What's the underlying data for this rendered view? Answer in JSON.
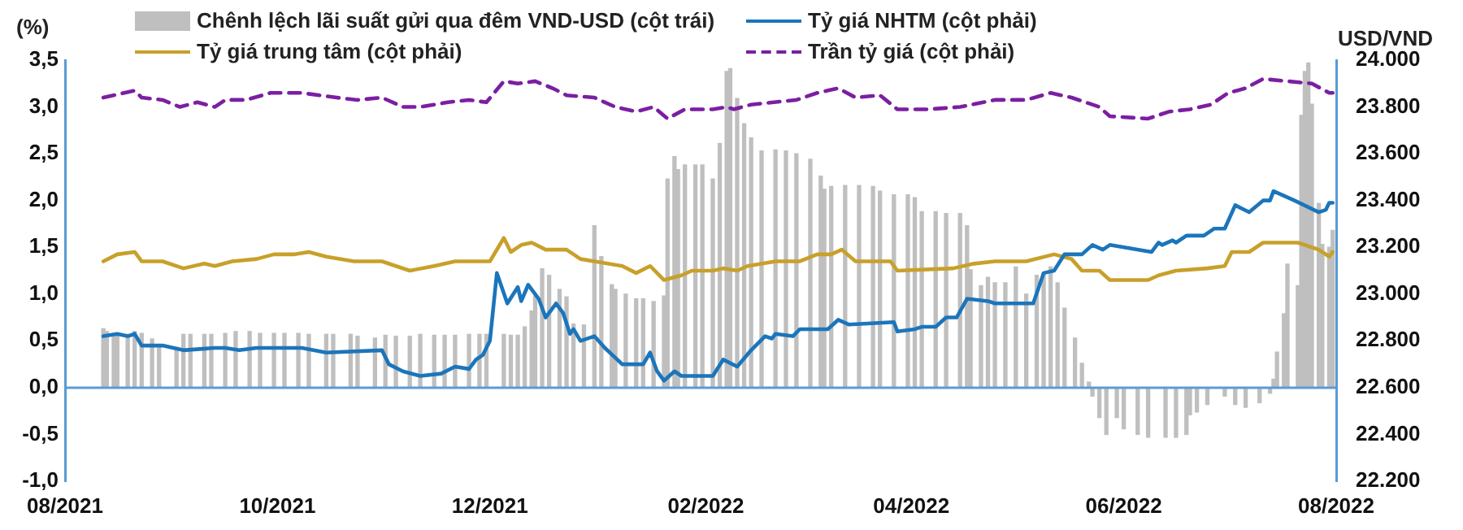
{
  "chart_data": {
    "type": "bar",
    "ylabel": "(%)",
    "y2label": "USD/VND",
    "legend": "top",
    "grid": false,
    "marker": "none",
    "xlim": [
      "2021-08-01",
      "2022-08-01"
    ],
    "xticks": [
      {
        "value": "2021-08-01",
        "label": "08/2021"
      },
      {
        "value": "2021-10-01",
        "label": "10/2021"
      },
      {
        "value": "2021-12-01",
        "label": "12/2021"
      },
      {
        "value": "2022-02-01",
        "label": "02/2022"
      },
      {
        "value": "2022-04-01",
        "label": "04/2022"
      },
      {
        "value": "2022-06-01",
        "label": "06/2022"
      },
      {
        "value": "2022-08-01",
        "label": "08/2022"
      }
    ],
    "ylim": [
      -1,
      3.5
    ],
    "yticks": [
      {
        "value": -1,
        "label": "-1,0"
      },
      {
        "value": -0.5,
        "label": "-0,5"
      },
      {
        "value": 0,
        "label": "0,0"
      },
      {
        "value": 0.5,
        "label": "0,5"
      },
      {
        "value": 1,
        "label": "1,0"
      },
      {
        "value": 1.5,
        "label": "1,5"
      },
      {
        "value": 2,
        "label": "2,0"
      },
      {
        "value": 2.5,
        "label": "2,5"
      },
      {
        "value": 3,
        "label": "3,0"
      },
      {
        "value": 3.5,
        "label": "3,5"
      }
    ],
    "ref_lines": [
      {
        "axis": "y",
        "value": 0,
        "color": "#5b9bd5"
      }
    ],
    "y2lim": [
      22200,
      24000
    ],
    "y2ticks": [
      {
        "value": 22200,
        "label": "22.200"
      },
      {
        "value": 22400,
        "label": "22.400"
      },
      {
        "value": 22600,
        "label": "22.600"
      },
      {
        "value": 22800,
        "label": "22.800"
      },
      {
        "value": 23000,
        "label": "23.000"
      },
      {
        "value": 23200,
        "label": "23.200"
      },
      {
        "value": 23400,
        "label": "23.400"
      },
      {
        "value": 23600,
        "label": "23.600"
      },
      {
        "value": 23800,
        "label": "23.800"
      },
      {
        "value": 24000,
        "label": "24.000"
      }
    ],
    "series": [
      {
        "name": "Chênh lệch lãi suất gửi qua đêm VND-USD (cột trái)",
        "color": "#bfbfbf",
        "x": [
          "2021-08-12",
          "2021-08-13",
          "2021-08-15",
          "2021-08-16",
          "2021-08-19",
          "2021-08-21",
          "2021-08-23",
          "2021-08-26",
          "2021-08-28",
          "2021-09-02",
          "2021-09-04",
          "2021-09-06",
          "2021-09-10",
          "2021-09-12",
          "2021-09-16",
          "2021-09-19",
          "2021-09-23",
          "2021-09-26",
          "2021-09-30",
          "2021-10-03",
          "2021-10-07",
          "2021-10-10",
          "2021-10-15",
          "2021-10-17",
          "2021-10-22",
          "2021-10-24",
          "2021-10-29",
          "2021-11-01",
          "2021-11-04",
          "2021-11-08",
          "2021-11-11",
          "2021-11-15",
          "2021-11-18",
          "2021-11-21",
          "2021-11-25",
          "2021-11-28",
          "2021-11-30",
          "2021-12-05",
          "2021-12-07",
          "2021-12-09",
          "2021-12-11",
          "2021-12-13",
          "2021-12-14",
          "2021-12-16",
          "2021-12-18",
          "2021-12-21",
          "2021-12-23",
          "2021-12-25",
          "2021-12-28",
          "2021-12-31",
          "2022-01-02",
          "2022-01-05",
          "2022-01-06",
          "2022-01-09",
          "2022-01-12",
          "2022-01-14",
          "2022-01-17",
          "2022-01-20",
          "2022-01-21",
          "2022-01-23",
          "2022-01-24",
          "2022-01-26",
          "2022-01-29",
          "2022-01-31",
          "2022-02-03",
          "2022-02-05",
          "2022-02-07",
          "2022-02-08",
          "2022-02-10",
          "2022-02-12",
          "2022-02-14",
          "2022-02-17",
          "2022-02-21",
          "2022-02-24",
          "2022-02-27",
          "2022-03-03",
          "2022-03-06",
          "2022-03-07",
          "2022-03-09",
          "2022-03-13",
          "2022-03-17",
          "2022-03-21",
          "2022-03-23",
          "2022-03-27",
          "2022-03-31",
          "2022-04-02",
          "2022-04-04",
          "2022-04-08",
          "2022-04-11",
          "2022-04-15",
          "2022-04-17",
          "2022-04-18",
          "2022-04-21",
          "2022-04-23",
          "2022-04-25",
          "2022-04-28",
          "2022-05-01",
          "2022-05-04",
          "2022-05-07",
          "2022-05-09",
          "2022-05-11",
          "2022-05-13",
          "2022-05-15",
          "2022-05-18",
          "2022-05-20",
          "2022-05-22",
          "2022-05-23",
          "2022-05-25",
          "2022-05-27",
          "2022-05-30",
          "2022-06-01",
          "2022-06-05",
          "2022-06-08",
          "2022-06-13",
          "2022-06-16",
          "2022-06-19",
          "2022-06-20",
          "2022-06-22",
          "2022-06-25",
          "2022-06-30",
          "2022-07-03",
          "2022-07-06",
          "2022-07-10",
          "2022-07-13",
          "2022-07-14",
          "2022-07-15",
          "2022-07-17",
          "2022-07-18",
          "2022-07-21",
          "2022-07-22",
          "2022-07-23",
          "2022-07-24",
          "2022-07-25",
          "2022-07-27",
          "2022-07-28",
          "2022-07-30",
          "2022-07-31"
        ],
        "values": [
          0.63,
          0.6,
          0.58,
          0.57,
          0.57,
          0.6,
          0.58,
          0.52,
          0.43,
          0.43,
          0.57,
          0.57,
          0.57,
          0.57,
          0.58,
          0.6,
          0.6,
          0.58,
          0.58,
          0.58,
          0.58,
          0.57,
          0.57,
          0.57,
          0.57,
          0.55,
          0.53,
          0.56,
          0.55,
          0.55,
          0.57,
          0.56,
          0.56,
          0.56,
          0.57,
          0.57,
          0.57,
          0.57,
          0.56,
          0.56,
          0.65,
          0.82,
          0.98,
          1.27,
          1.2,
          1.05,
          0.97,
          0.68,
          0.67,
          1.73,
          1.4,
          1.1,
          1.05,
          1.0,
          0.95,
          0.95,
          0.92,
          0.98,
          2.23,
          2.47,
          2.33,
          2.38,
          2.38,
          2.38,
          2.23,
          2.61,
          3.38,
          3.41,
          3.09,
          2.82,
          2.67,
          2.53,
          2.54,
          2.53,
          2.5,
          2.44,
          2.26,
          2.12,
          2.15,
          2.16,
          2.16,
          2.15,
          2.1,
          2.06,
          2.06,
          2.03,
          1.88,
          1.88,
          1.86,
          1.86,
          1.73,
          1.26,
          1.09,
          1.18,
          1.12,
          1.12,
          1.29,
          1.0,
          1.2,
          1.23,
          1.29,
          1.12,
          0.85,
          0.53,
          0.26,
          0.06,
          -0.09,
          -0.32,
          -0.5,
          -0.32,
          -0.44,
          -0.5,
          -0.53,
          -0.53,
          -0.53,
          -0.5,
          -0.29,
          -0.26,
          -0.18,
          -0.09,
          -0.18,
          -0.21,
          -0.16,
          -0.06,
          0.09,
          0.38,
          0.79,
          1.32,
          1.09,
          2.91,
          3.38,
          3.47,
          3.03,
          1.97,
          1.53,
          1.5,
          1.68
        ]
      },
      {
        "name": "Tỷ giá NHTM (cột phải)",
        "type": "line",
        "axis": "y2",
        "color": "#1b75bb",
        "line_style": "solid",
        "x": [
          "2021-08-12",
          "2021-08-16",
          "2021-08-19",
          "2021-08-21",
          "2021-08-23",
          "2021-08-29",
          "2021-09-04",
          "2021-09-13",
          "2021-09-16",
          "2021-09-20",
          "2021-09-25",
          "2021-10-08",
          "2021-10-15",
          "2021-10-31",
          "2021-11-02",
          "2021-11-06",
          "2021-11-11",
          "2021-11-17",
          "2021-11-21",
          "2021-11-25",
          "2021-11-27",
          "2021-11-29",
          "2021-12-01",
          "2021-12-03",
          "2021-12-06",
          "2021-12-09",
          "2021-12-10",
          "2021-12-12",
          "2021-12-15",
          "2021-12-17",
          "2021-12-20",
          "2021-12-22",
          "2021-12-24",
          "2021-12-25",
          "2021-12-27",
          "2021-12-31",
          "2022-01-03",
          "2022-01-08",
          "2022-01-14",
          "2022-01-16",
          "2022-01-18",
          "2022-01-20",
          "2022-01-23",
          "2022-01-25",
          "2022-02-03",
          "2022-02-06",
          "2022-02-10",
          "2022-02-14",
          "2022-02-18",
          "2022-02-20",
          "2022-02-21",
          "2022-02-26",
          "2022-02-28",
          "2022-03-08",
          "2022-03-11",
          "2022-03-14",
          "2022-03-27",
          "2022-03-28",
          "2022-04-02",
          "2022-04-04",
          "2022-04-08",
          "2022-04-11",
          "2022-04-14",
          "2022-04-17",
          "2022-04-23",
          "2022-04-25",
          "2022-05-04",
          "2022-05-06",
          "2022-05-09",
          "2022-05-12",
          "2022-05-15",
          "2022-05-20",
          "2022-05-23",
          "2022-05-26",
          "2022-05-28",
          "2022-06-09",
          "2022-06-11",
          "2022-06-12",
          "2022-06-15",
          "2022-06-16",
          "2022-06-19",
          "2022-06-24",
          "2022-06-27",
          "2022-06-30",
          "2022-07-03",
          "2022-07-07",
          "2022-07-11",
          "2022-07-13",
          "2022-07-14",
          "2022-07-20",
          "2022-07-27",
          "2022-07-29",
          "2022-07-30",
          "2022-07-31"
        ],
        "values": [
          22820,
          22830,
          22820,
          22830,
          22780,
          22780,
          22760,
          22770,
          22770,
          22760,
          22770,
          22770,
          22750,
          22760,
          22700,
          22670,
          22650,
          22660,
          22690,
          22680,
          22720,
          22740,
          22800,
          23090,
          22960,
          23030,
          22970,
          23040,
          22980,
          22900,
          22960,
          22920,
          22830,
          22850,
          22800,
          22820,
          22770,
          22700,
          22700,
          22750,
          22670,
          22630,
          22670,
          22650,
          22650,
          22720,
          22690,
          22760,
          22820,
          22810,
          22830,
          22820,
          22850,
          22850,
          22890,
          22870,
          22880,
          22840,
          22850,
          22860,
          22860,
          22900,
          22900,
          22980,
          22970,
          22960,
          22960,
          22960,
          23090,
          23100,
          23170,
          23170,
          23210,
          23190,
          23210,
          23180,
          23220,
          23210,
          23230,
          23220,
          23250,
          23250,
          23280,
          23280,
          23380,
          23350,
          23400,
          23400,
          23440,
          23400,
          23350,
          23360,
          23390,
          23390
        ]
      },
      {
        "name": "Tỷ giá trung tâm (cột phải)",
        "type": "line",
        "axis": "y2",
        "color": "#c8a02a",
        "line_style": "solid",
        "x": [
          "2021-08-12",
          "2021-08-16",
          "2021-08-21",
          "2021-08-23",
          "2021-08-29",
          "2021-09-04",
          "2021-09-10",
          "2021-09-13",
          "2021-09-18",
          "2021-09-25",
          "2021-09-30",
          "2021-10-06",
          "2021-10-10",
          "2021-10-15",
          "2021-10-23",
          "2021-10-31",
          "2021-11-08",
          "2021-11-15",
          "2021-11-21",
          "2021-11-29",
          "2021-12-01",
          "2021-12-05",
          "2021-12-07",
          "2021-12-10",
          "2021-12-13",
          "2021-12-17",
          "2021-12-23",
          "2021-12-27",
          "2021-12-31",
          "2022-01-08",
          "2022-01-12",
          "2022-01-16",
          "2022-01-20",
          "2022-01-25",
          "2022-01-28",
          "2022-02-03",
          "2022-02-06",
          "2022-02-10",
          "2022-02-13",
          "2022-02-21",
          "2022-02-28",
          "2022-03-05",
          "2022-03-09",
          "2022-03-12",
          "2022-03-16",
          "2022-03-26",
          "2022-03-28",
          "2022-04-13",
          "2022-04-19",
          "2022-04-25",
          "2022-05-04",
          "2022-05-12",
          "2022-05-17",
          "2022-05-20",
          "2022-05-25",
          "2022-05-28",
          "2022-06-03",
          "2022-06-08",
          "2022-06-11",
          "2022-06-16",
          "2022-06-25",
          "2022-06-30",
          "2022-07-02",
          "2022-07-07",
          "2022-07-11",
          "2022-07-21",
          "2022-07-27",
          "2022-07-30",
          "2022-07-31"
        ],
        "values": [
          23140,
          23170,
          23180,
          23140,
          23140,
          23110,
          23130,
          23120,
          23140,
          23150,
          23170,
          23170,
          23180,
          23160,
          23140,
          23140,
          23100,
          23120,
          23140,
          23140,
          23140,
          23240,
          23180,
          23210,
          23220,
          23190,
          23190,
          23150,
          23140,
          23120,
          23090,
          23120,
          23060,
          23080,
          23100,
          23100,
          23110,
          23100,
          23120,
          23140,
          23140,
          23170,
          23170,
          23190,
          23140,
          23140,
          23100,
          23110,
          23130,
          23140,
          23140,
          23170,
          23150,
          23100,
          23100,
          23060,
          23060,
          23060,
          23080,
          23100,
          23110,
          23120,
          23180,
          23180,
          23220,
          23220,
          23190,
          23160,
          23180
        ]
      },
      {
        "name": "Trần tỷ giá (cột phải)",
        "type": "line",
        "axis": "y2",
        "color": "#7b1fa2",
        "line_style": "dashed",
        "x": [
          "2021-08-12",
          "2021-08-18",
          "2021-08-21",
          "2021-08-23",
          "2021-08-29",
          "2021-09-03",
          "2021-09-08",
          "2021-09-13",
          "2021-09-16",
          "2021-09-22",
          "2021-09-29",
          "2021-10-08",
          "2021-10-18",
          "2021-10-24",
          "2021-10-31",
          "2021-11-06",
          "2021-11-11",
          "2021-11-19",
          "2021-11-25",
          "2021-11-30",
          "2021-12-05",
          "2021-12-09",
          "2021-12-14",
          "2021-12-19",
          "2021-12-23",
          "2021-12-31",
          "2022-01-06",
          "2022-01-12",
          "2022-01-17",
          "2022-01-21",
          "2022-01-26",
          "2022-02-03",
          "2022-02-07",
          "2022-02-09",
          "2022-02-14",
          "2022-02-27",
          "2022-03-05",
          "2022-03-11",
          "2022-03-16",
          "2022-03-23",
          "2022-03-28",
          "2022-04-06",
          "2022-04-15",
          "2022-04-25",
          "2022-05-04",
          "2022-05-11",
          "2022-05-17",
          "2022-05-25",
          "2022-05-28",
          "2022-06-08",
          "2022-06-14",
          "2022-06-20",
          "2022-06-26",
          "2022-07-01",
          "2022-07-06",
          "2022-07-11",
          "2022-07-18",
          "2022-07-25",
          "2022-07-30",
          "2022-07-31"
        ],
        "values": [
          23840,
          23860,
          23870,
          23840,
          23830,
          23800,
          23820,
          23800,
          23830,
          23830,
          23860,
          23860,
          23840,
          23830,
          23840,
          23800,
          23800,
          23820,
          23830,
          23820,
          23910,
          23900,
          23910,
          23880,
          23850,
          23840,
          23800,
          23780,
          23800,
          23750,
          23790,
          23790,
          23800,
          23790,
          23810,
          23830,
          23860,
          23880,
          23840,
          23850,
          23790,
          23790,
          23800,
          23830,
          23830,
          23860,
          23840,
          23800,
          23760,
          23750,
          23780,
          23790,
          23810,
          23860,
          23880,
          23920,
          23910,
          23900,
          23860,
          23860
        ]
      }
    ]
  }
}
